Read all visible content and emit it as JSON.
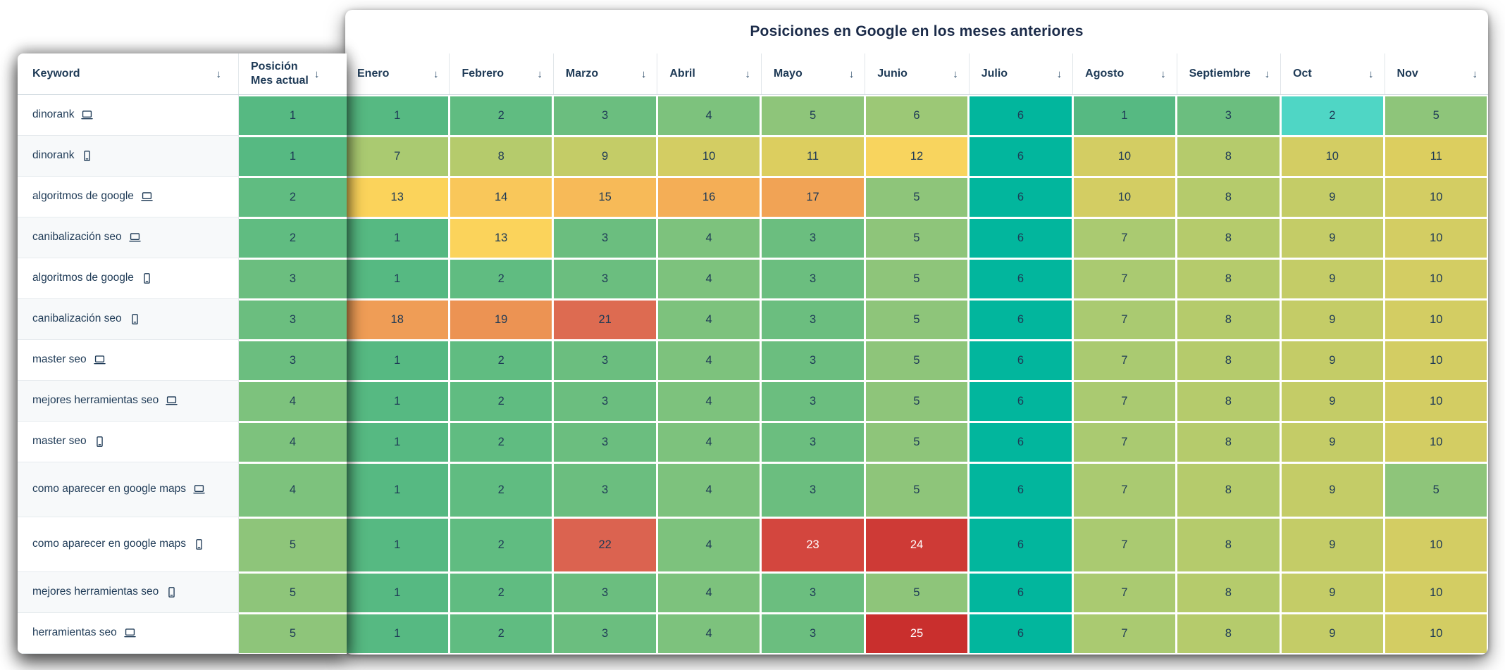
{
  "title": "Posiciones en Google en los meses anteriores",
  "sort_icon": "↓",
  "columns": {
    "keyword": "Keyword",
    "position": "Posición\nMes actual",
    "months": [
      "Enero",
      "Febrero",
      "Marzo",
      "Abril",
      "Mayo",
      "Junio",
      "Julio",
      "Agosto",
      "Septiembre",
      "Oct",
      "Nov"
    ]
  },
  "colors": {
    "text_dark": "#1e3a56",
    "text_light": "#ffffff",
    "julio_column_teal": "#02b69d",
    "oct_highlight_cyan": "#4fd6c5",
    "scale": {
      "1": "#56b982",
      "2": "#60bc81",
      "3": "#6bbe7f",
      "4": "#7dc27d",
      "5": "#8ec57a",
      "6": "#9cc876",
      "7": "#aaca71",
      "8": "#b5cb6c",
      "9": "#c4cc67",
      "10": "#d3cd63",
      "11": "#dcce5f",
      "12": "#f8d45e",
      "13": "#fbd35b",
      "14": "#f9c75a",
      "15": "#f7ba58",
      "16": "#f4ae56",
      "17": "#f1a355",
      "18": "#ef9d56",
      "19": "#ec9353",
      "21": "#dd6b51",
      "22": "#db6350",
      "23": "#d3463e",
      "24": "#ce3a36",
      "25": "#c92f2d"
    }
  },
  "white_text_values": [
    23,
    24,
    25
  ],
  "teal_column_index": 6,
  "highlight_cells": [
    {
      "row": 0,
      "month_index": 9,
      "color_key": "oct_highlight_cyan"
    }
  ],
  "rows": [
    {
      "keyword": "dinorank",
      "device": "desktop",
      "position": 1,
      "values": [
        1,
        2,
        3,
        4,
        5,
        6,
        6,
        1,
        3,
        2,
        5
      ],
      "tall": false
    },
    {
      "keyword": "dinorank",
      "device": "mobile",
      "position": 1,
      "values": [
        7,
        8,
        9,
        10,
        11,
        12,
        6,
        10,
        8,
        10,
        11
      ],
      "tall": false
    },
    {
      "keyword": "algoritmos de google",
      "device": "desktop",
      "position": 2,
      "values": [
        13,
        14,
        15,
        16,
        17,
        5,
        6,
        10,
        8,
        9,
        10
      ],
      "tall": false
    },
    {
      "keyword": "canibalización seo",
      "device": "desktop",
      "position": 2,
      "values": [
        1,
        13,
        3,
        4,
        3,
        5,
        6,
        7,
        8,
        9,
        10
      ],
      "tall": false
    },
    {
      "keyword": "algoritmos de google",
      "device": "mobile",
      "position": 3,
      "values": [
        1,
        2,
        3,
        4,
        3,
        5,
        6,
        7,
        8,
        9,
        10
      ],
      "tall": false
    },
    {
      "keyword": "canibalización seo",
      "device": "mobile",
      "position": 3,
      "values": [
        18,
        19,
        21,
        4,
        3,
        5,
        6,
        7,
        8,
        9,
        10
      ],
      "tall": false
    },
    {
      "keyword": "master seo",
      "device": "desktop",
      "position": 3,
      "values": [
        1,
        2,
        3,
        4,
        3,
        5,
        6,
        7,
        8,
        9,
        10
      ],
      "tall": false
    },
    {
      "keyword": "mejores herramientas seo",
      "device": "desktop",
      "position": 4,
      "values": [
        1,
        2,
        3,
        4,
        3,
        5,
        6,
        7,
        8,
        9,
        10
      ],
      "tall": false
    },
    {
      "keyword": "master seo",
      "device": "mobile",
      "position": 4,
      "values": [
        1,
        2,
        3,
        4,
        3,
        5,
        6,
        7,
        8,
        9,
        10
      ],
      "tall": false
    },
    {
      "keyword": "como aparecer en google maps",
      "device": "desktop",
      "position": 4,
      "values": [
        1,
        2,
        3,
        4,
        3,
        5,
        6,
        7,
        8,
        9,
        5
      ],
      "tall": true
    },
    {
      "keyword": "como aparecer en google maps",
      "device": "mobile",
      "position": 5,
      "values": [
        1,
        2,
        22,
        4,
        23,
        24,
        6,
        7,
        8,
        9,
        10
      ],
      "tall": true
    },
    {
      "keyword": "mejores herramientas seo",
      "device": "mobile",
      "position": 5,
      "values": [
        1,
        2,
        3,
        4,
        3,
        5,
        6,
        7,
        8,
        9,
        10
      ],
      "tall": false
    },
    {
      "keyword": "herramientas seo",
      "device": "desktop",
      "position": 5,
      "values": [
        1,
        2,
        3,
        4,
        3,
        25,
        6,
        7,
        8,
        9,
        10
      ],
      "tall": false
    }
  ],
  "layout_note_row_height": {
    "normal": 58,
    "tall": 78
  }
}
